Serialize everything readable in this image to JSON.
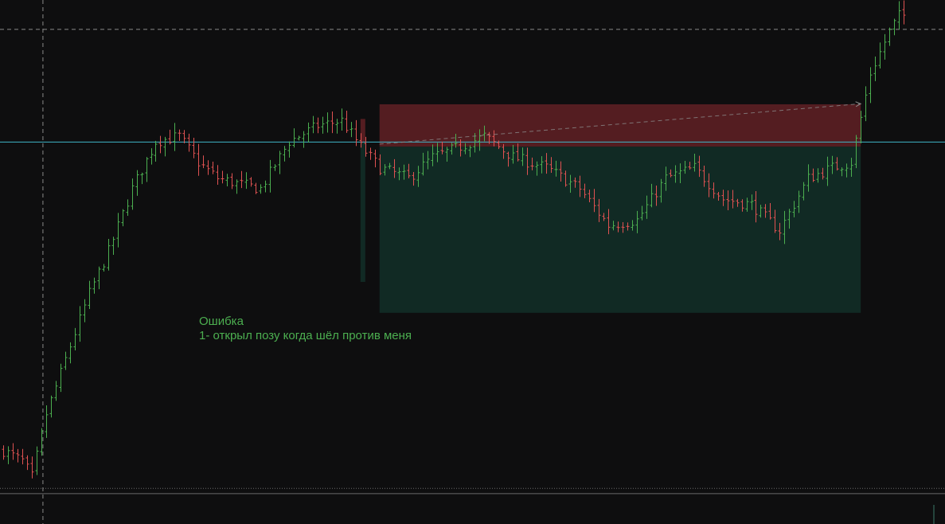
{
  "note": {
    "title": "Ошибка",
    "line1": "1- открыл позу когда шёл против меня"
  },
  "colors": {
    "background": "#0e0e0f",
    "bull": "#4caf50",
    "bear": "#e05252",
    "stop_zone": "#5c1f24",
    "profit_zone": "#112a24",
    "entry_line": "#3fb6c8",
    "crosshair": "#8a8a8a",
    "note_text": "#4caf50"
  },
  "chart_data": {
    "type": "bar",
    "style": "ohlc",
    "title": "",
    "xlabel": "",
    "ylabel": "",
    "ylim": [
      0,
      100
    ],
    "grid": false,
    "legend": "none",
    "crosshair": {
      "x_bar_index": 5,
      "y_value": 94.4
    },
    "entry_level": 72.9,
    "positions": [
      {
        "name": "",
        "start_bar": 75,
        "end_bar": 76,
        "stop_top": 77.3,
        "entry": 72.9,
        "profit_bottom": 46.2
      },
      {
        "name": "",
        "start_bar": 79,
        "end_bar": 180,
        "stop_top": 80.1,
        "entry": 72.0,
        "profit_bottom": 40.3
      }
    ],
    "trend_arrow": {
      "from_bar": 79,
      "from_value": 72.5,
      "to_bar": 180,
      "to_value": 80.2
    },
    "levels": [
      {
        "value": 6.8,
        "style": "dotted"
      },
      {
        "value": 5.8,
        "style": "solid"
      }
    ],
    "keys": [
      [
        0,
        14
      ],
      [
        4,
        12
      ],
      [
        6,
        9
      ],
      [
        9,
        21
      ],
      [
        14,
        34
      ],
      [
        18,
        44
      ],
      [
        22,
        52
      ],
      [
        27,
        64
      ],
      [
        32,
        73
      ],
      [
        37,
        74
      ],
      [
        41,
        69
      ],
      [
        45,
        66
      ],
      [
        49,
        65
      ],
      [
        54,
        64
      ],
      [
        60,
        73
      ],
      [
        66,
        76
      ],
      [
        71,
        77
      ],
      [
        75,
        72
      ],
      [
        79,
        68
      ],
      [
        85,
        66
      ],
      [
        90,
        70
      ],
      [
        96,
        72
      ],
      [
        101,
        74
      ],
      [
        107,
        70
      ],
      [
        114,
        68
      ],
      [
        121,
        64
      ],
      [
        127,
        57
      ],
      [
        133,
        58
      ],
      [
        139,
        66
      ],
      [
        145,
        68
      ],
      [
        151,
        62
      ],
      [
        157,
        61
      ],
      [
        163,
        56
      ],
      [
        169,
        66
      ],
      [
        174,
        68
      ],
      [
        178,
        69
      ],
      [
        182,
        86
      ],
      [
        186,
        94
      ],
      [
        188,
        97
      ]
    ],
    "bar_count": 190
  }
}
